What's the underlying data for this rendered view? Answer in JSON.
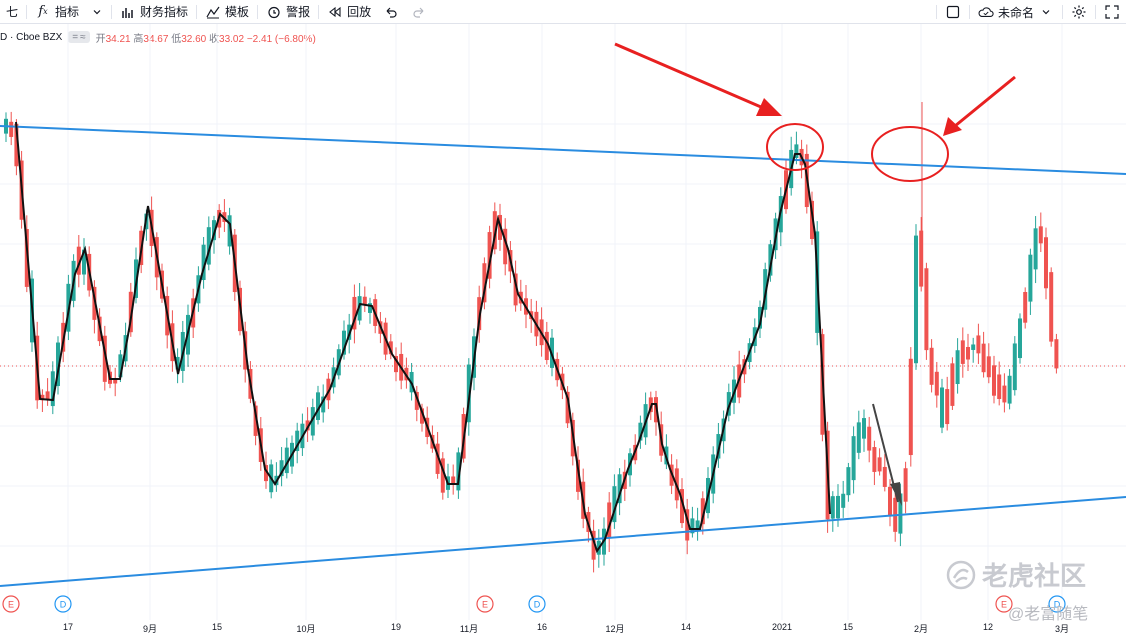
{
  "toolbar": {
    "partial": "七",
    "indicators": "指标",
    "financials": "财务指标",
    "templates": "模板",
    "alert": "警报",
    "replay": "回放",
    "layout_name": "未命名"
  },
  "legend": {
    "symbol": "D · Cboe BZX",
    "pill_a": "=",
    "pill_b": "≈",
    "open_label": "开",
    "open": "34.21",
    "high_label": "高",
    "high": "34.67",
    "low_label": "低",
    "low": "32.60",
    "close_label": "收",
    "close": "33.02",
    "change": "−2.41 (−6.80%)"
  },
  "event_markers": [
    "E",
    "D",
    "E",
    "D",
    "E",
    "D"
  ],
  "x_axis_labels": [
    "17",
    "9月",
    "15",
    "10月",
    "19",
    "11月",
    "16",
    "12月",
    "14",
    "2021",
    "15",
    "2月",
    "12",
    "3月"
  ],
  "watermark": {
    "brand": "老虎社区",
    "author": "@老富随笔"
  },
  "colors": {
    "up": "#26a69a",
    "down": "#ef5350",
    "trendline": "#2a8ce0",
    "annotation": "#e82020",
    "zigzag": "#111111"
  }
}
